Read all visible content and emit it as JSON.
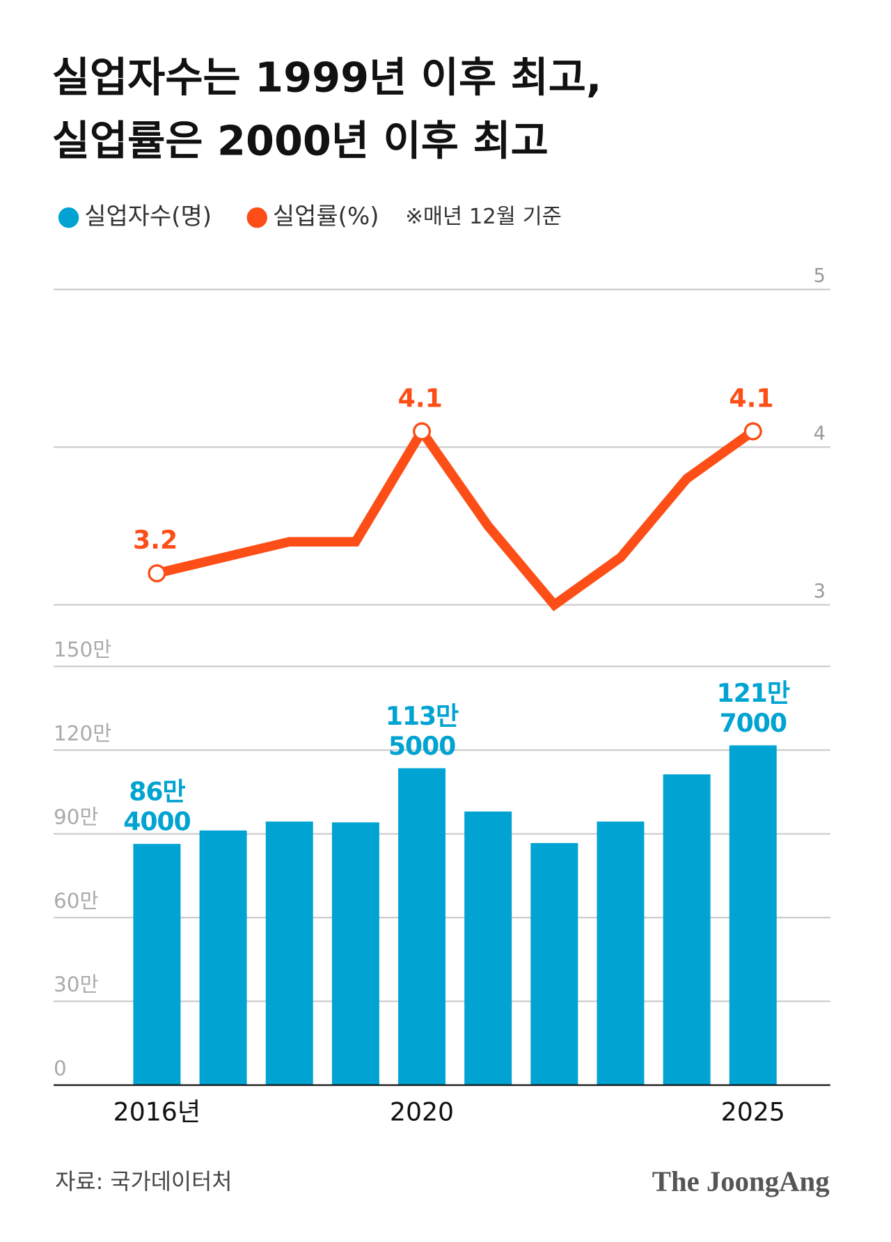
{
  "title": [
    "실업자수는 1999년 이후 최고,",
    "실업률은 2000년 이후 최고"
  ],
  "note": "※매년 12월 기준",
  "source": "자료: 국가데이터처",
  "logo": "The JoongAng",
  "chart_data": [
    {
      "type": "line",
      "name": "실업률(%)",
      "color": "#fc4e16",
      "values": [
        3.2,
        3.3,
        3.4,
        3.4,
        4.1,
        3.5,
        3.0,
        3.3,
        3.8,
        4.1
      ],
      "value_labels": [
        "3.2",
        null,
        null,
        null,
        "4.1",
        null,
        null,
        null,
        null,
        "4.1"
      ],
      "ylim": [
        3,
        5
      ],
      "yticks": [
        3,
        4,
        5
      ],
      "grid": true
    },
    {
      "type": "bar",
      "name": "실업자수(명)",
      "color": "#00a3d2",
      "categories": [
        "2016년",
        null,
        null,
        null,
        "2020",
        null,
        null,
        null,
        null,
        "2025"
      ],
      "values": [
        86.4,
        91.2,
        94.4,
        94.1,
        113.5,
        98.0,
        86.7,
        94.4,
        111.3,
        121.7
      ],
      "value_labels": [
        "86만\n4000",
        null,
        null,
        null,
        "113만\n5000",
        null,
        null,
        null,
        null,
        "121만\n7000"
      ],
      "ylim": [
        0,
        150
      ],
      "yticks": [
        0,
        {
          "value": 30,
          "label": "30만"
        },
        {
          "value": 60,
          "label": "60만"
        },
        {
          "value": 90,
          "label": "90만"
        },
        {
          "value": 120,
          "label": "120만"
        },
        {
          "value": 150,
          "label": "150만"
        }
      ],
      "grid": true
    }
  ]
}
